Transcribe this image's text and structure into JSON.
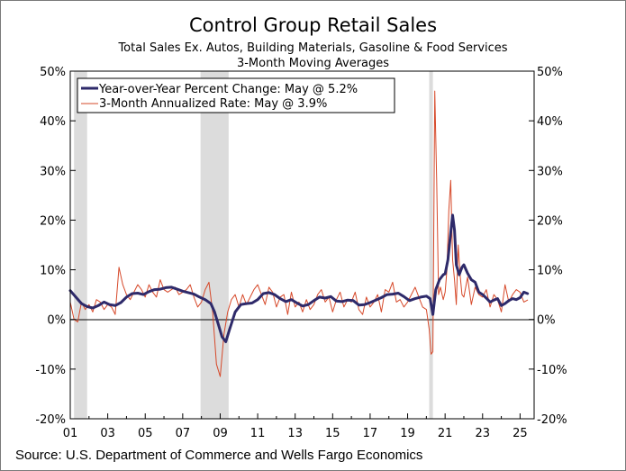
{
  "chart_data": {
    "type": "line",
    "title": "Control Group Retail Sales",
    "subtitle": "Total Sales Ex. Autos, Building Materials, Gasoline & Food Services",
    "subtitle2": "3-Month Moving Averages",
    "source": "Source: U.S. Department of Commerce and Wells Fargo Economics",
    "ylim": [
      -20,
      50
    ],
    "xlim": [
      2001.0,
      2025.75
    ],
    "y_ticks": [
      {
        "value": 50,
        "label": "50%"
      },
      {
        "value": 40,
        "label": "40%"
      },
      {
        "value": 30,
        "label": "30%"
      },
      {
        "value": 20,
        "label": "20%"
      },
      {
        "value": 10,
        "label": "10%"
      },
      {
        "value": 0,
        "label": "0%"
      },
      {
        "value": -10,
        "label": "-10%"
      },
      {
        "value": -20,
        "label": "-20%"
      }
    ],
    "x_ticks": [
      {
        "value": 2001,
        "label": "01"
      },
      {
        "value": 2003,
        "label": "03"
      },
      {
        "value": 2005,
        "label": "05"
      },
      {
        "value": 2007,
        "label": "07"
      },
      {
        "value": 2009,
        "label": "09"
      },
      {
        "value": 2011,
        "label": "11"
      },
      {
        "value": 2013,
        "label": "13"
      },
      {
        "value": 2015,
        "label": "15"
      },
      {
        "value": 2017,
        "label": "17"
      },
      {
        "value": 2019,
        "label": "19"
      },
      {
        "value": 2021,
        "label": "21"
      },
      {
        "value": 2023,
        "label": "23"
      },
      {
        "value": 2025,
        "label": "25"
      }
    ],
    "recessions": [
      [
        2001.2,
        2001.9
      ],
      [
        2007.95,
        2009.45
      ],
      [
        2020.15,
        2020.35
      ]
    ],
    "series": [
      {
        "name": "Year-over-Year Percent Change: May @ 5.2%",
        "color": "#2e2a6a",
        "kind": "thick",
        "x": [
          2001.0,
          2001.3,
          2001.6,
          2001.9,
          2002.2,
          2002.5,
          2002.8,
          2003.1,
          2003.4,
          2003.7,
          2004.0,
          2004.3,
          2004.6,
          2004.9,
          2005.2,
          2005.5,
          2005.8,
          2006.1,
          2006.4,
          2006.7,
          2007.0,
          2007.3,
          2007.6,
          2007.9,
          2008.2,
          2008.5,
          2008.7,
          2008.9,
          2009.1,
          2009.3,
          2009.5,
          2009.8,
          2010.1,
          2010.4,
          2010.7,
          2011.0,
          2011.3,
          2011.6,
          2011.9,
          2012.2,
          2012.5,
          2012.8,
          2013.1,
          2013.4,
          2013.7,
          2014.0,
          2014.3,
          2014.6,
          2014.9,
          2015.2,
          2015.5,
          2015.8,
          2016.1,
          2016.4,
          2016.7,
          2017.0,
          2017.3,
          2017.6,
          2017.9,
          2018.2,
          2018.5,
          2018.8,
          2019.1,
          2019.4,
          2019.7,
          2020.0,
          2020.2,
          2020.35,
          2020.5,
          2020.7,
          2020.9,
          2021.0,
          2021.15,
          2021.3,
          2021.4,
          2021.5,
          2021.6,
          2021.75,
          2021.9,
          2022.0,
          2022.2,
          2022.4,
          2022.6,
          2022.8,
          2023.0,
          2023.2,
          2023.4,
          2023.6,
          2023.8,
          2024.0,
          2024.2,
          2024.4,
          2024.6,
          2024.8,
          2025.0,
          2025.2,
          2025.4
        ],
        "y": [
          5.8,
          4.5,
          3.2,
          2.6,
          2.3,
          2.8,
          3.5,
          3.0,
          2.8,
          3.4,
          4.5,
          5.2,
          5.3,
          5.0,
          5.6,
          6.0,
          6.1,
          6.4,
          6.5,
          6.1,
          5.7,
          5.4,
          5.1,
          4.5,
          4.0,
          3.2,
          1.5,
          -1.0,
          -3.5,
          -4.5,
          -2.0,
          1.5,
          3.0,
          3.2,
          3.3,
          4.0,
          5.2,
          5.4,
          5.0,
          4.2,
          3.6,
          4.0,
          3.3,
          2.7,
          3.0,
          3.8,
          4.5,
          4.3,
          4.6,
          3.7,
          3.6,
          3.9,
          3.8,
          2.9,
          3.0,
          3.4,
          3.9,
          4.4,
          5.0,
          5.1,
          5.3,
          4.6,
          3.8,
          4.2,
          4.5,
          4.7,
          4.2,
          1.0,
          6.0,
          8.0,
          9.0,
          9.2,
          12.0,
          17.5,
          21.0,
          18.0,
          11.0,
          9.0,
          10.5,
          11.0,
          9.3,
          8.0,
          7.5,
          5.5,
          5.0,
          4.3,
          3.5,
          3.9,
          4.2,
          2.8,
          3.2,
          3.8,
          4.2,
          4.0,
          4.4,
          5.5,
          5.2
        ]
      },
      {
        "name": "3-Month Annualized Rate: May @ 3.9%",
        "color": "#d6492a",
        "kind": "thin",
        "x": [
          2001.0,
          2001.2,
          2001.4,
          2001.6,
          2001.8,
          2002.0,
          2002.2,
          2002.4,
          2002.6,
          2002.8,
          2003.0,
          2003.2,
          2003.4,
          2003.6,
          2003.8,
          2004.0,
          2004.2,
          2004.4,
          2004.6,
          2004.8,
          2005.0,
          2005.2,
          2005.4,
          2005.6,
          2005.8,
          2006.0,
          2006.2,
          2006.4,
          2006.6,
          2006.8,
          2007.0,
          2007.2,
          2007.4,
          2007.6,
          2007.8,
          2008.0,
          2008.2,
          2008.4,
          2008.6,
          2008.8,
          2009.0,
          2009.2,
          2009.4,
          2009.6,
          2009.8,
          2010.0,
          2010.2,
          2010.4,
          2010.6,
          2010.8,
          2011.0,
          2011.2,
          2011.4,
          2011.6,
          2011.8,
          2012.0,
          2012.2,
          2012.4,
          2012.6,
          2012.8,
          2013.0,
          2013.2,
          2013.4,
          2013.6,
          2013.8,
          2014.0,
          2014.2,
          2014.4,
          2014.6,
          2014.8,
          2015.0,
          2015.2,
          2015.4,
          2015.6,
          2015.8,
          2016.0,
          2016.2,
          2016.4,
          2016.6,
          2016.8,
          2017.0,
          2017.2,
          2017.4,
          2017.6,
          2017.8,
          2018.0,
          2018.2,
          2018.4,
          2018.6,
          2018.8,
          2019.0,
          2019.2,
          2019.4,
          2019.6,
          2019.8,
          2020.0,
          2020.15,
          2020.25,
          2020.35,
          2020.45,
          2020.55,
          2020.65,
          2020.75,
          2020.9,
          2021.0,
          2021.1,
          2021.2,
          2021.3,
          2021.4,
          2021.5,
          2021.6,
          2021.7,
          2021.8,
          2021.9,
          2022.0,
          2022.2,
          2022.4,
          2022.6,
          2022.8,
          2023.0,
          2023.2,
          2023.4,
          2023.6,
          2023.8,
          2024.0,
          2024.2,
          2024.4,
          2024.6,
          2024.8,
          2025.0,
          2025.2,
          2025.4
        ],
        "y": [
          3.5,
          0.0,
          -0.5,
          3.5,
          2.0,
          3.0,
          1.5,
          4.0,
          3.5,
          2.0,
          3.0,
          2.5,
          1.0,
          10.5,
          7.0,
          5.0,
          4.0,
          5.5,
          7.0,
          6.0,
          4.5,
          7.0,
          5.5,
          4.5,
          8.0,
          6.0,
          5.5,
          6.0,
          6.5,
          5.0,
          5.5,
          6.0,
          7.0,
          4.5,
          2.5,
          3.5,
          6.0,
          7.5,
          1.5,
          -9.0,
          -11.5,
          -3.0,
          1.5,
          4.0,
          5.0,
          2.5,
          5.0,
          3.0,
          4.5,
          6.0,
          7.0,
          5.0,
          3.0,
          6.5,
          5.5,
          2.5,
          4.5,
          5.0,
          1.0,
          5.5,
          2.5,
          3.5,
          1.5,
          4.0,
          2.0,
          3.0,
          5.0,
          6.0,
          3.5,
          4.5,
          1.5,
          4.0,
          5.5,
          2.5,
          4.0,
          3.5,
          5.5,
          2.0,
          1.0,
          4.5,
          2.5,
          3.5,
          5.0,
          1.5,
          6.0,
          5.5,
          7.5,
          3.5,
          4.0,
          2.5,
          3.5,
          5.0,
          6.5,
          4.5,
          2.5,
          2.0,
          -2.0,
          -7.0,
          -6.5,
          46.0,
          28.0,
          5.0,
          6.5,
          4.0,
          5.5,
          10.0,
          22.0,
          28.0,
          12.0,
          8.0,
          3.0,
          15.0,
          9.0,
          5.0,
          4.5,
          8.5,
          3.0,
          6.5,
          5.0,
          4.5,
          6.0,
          2.5,
          5.0,
          4.0,
          1.5,
          7.0,
          3.5,
          5.0,
          6.0,
          5.5,
          3.5,
          3.9
        ]
      }
    ],
    "legend": {
      "yoy": "Year-over-Year Percent Change: May @ 5.2%",
      "ann": "3-Month Annualized Rate: May @ 3.9%"
    }
  }
}
